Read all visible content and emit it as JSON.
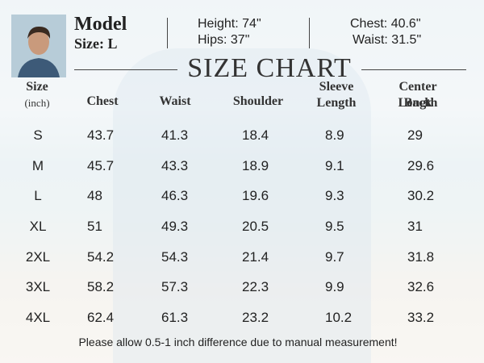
{
  "model": {
    "label": "Model",
    "size": "Size: L",
    "height": "Height: 74\"",
    "hips": "Hips: 37\"",
    "chest": "Chest: 40.6\"",
    "waist": "Waist: 31.5\""
  },
  "title": "SIZE CHART",
  "table": {
    "headers": [
      [
        "Size",
        "(inch)"
      ],
      [
        "Chest"
      ],
      [
        "Waist"
      ],
      [
        "Shoulder"
      ],
      [
        "Sleeve",
        "Length"
      ],
      [
        "Center Back",
        "Length"
      ]
    ],
    "rows": [
      [
        "S",
        "43.7",
        "41.3",
        "18.4",
        "8.9",
        "29"
      ],
      [
        "M",
        "45.7",
        "43.3",
        "18.9",
        "9.1",
        "29.6"
      ],
      [
        "L",
        "48",
        "46.3",
        "19.6",
        "9.3",
        "30.2"
      ],
      [
        "XL",
        "51",
        "49.3",
        "20.5",
        "9.5",
        "31"
      ],
      [
        "2XL",
        "54.2",
        "54.3",
        "21.4",
        "9.7",
        "31.8"
      ],
      [
        "3XL",
        "58.2",
        "57.3",
        "22.3",
        "9.9",
        "32.6"
      ],
      [
        "4XL",
        "62.4",
        "61.3",
        "23.2",
        "10.2",
        "33.2"
      ]
    ]
  },
  "note": "Please allow 0.5-1 inch difference due to manual measurement!"
}
